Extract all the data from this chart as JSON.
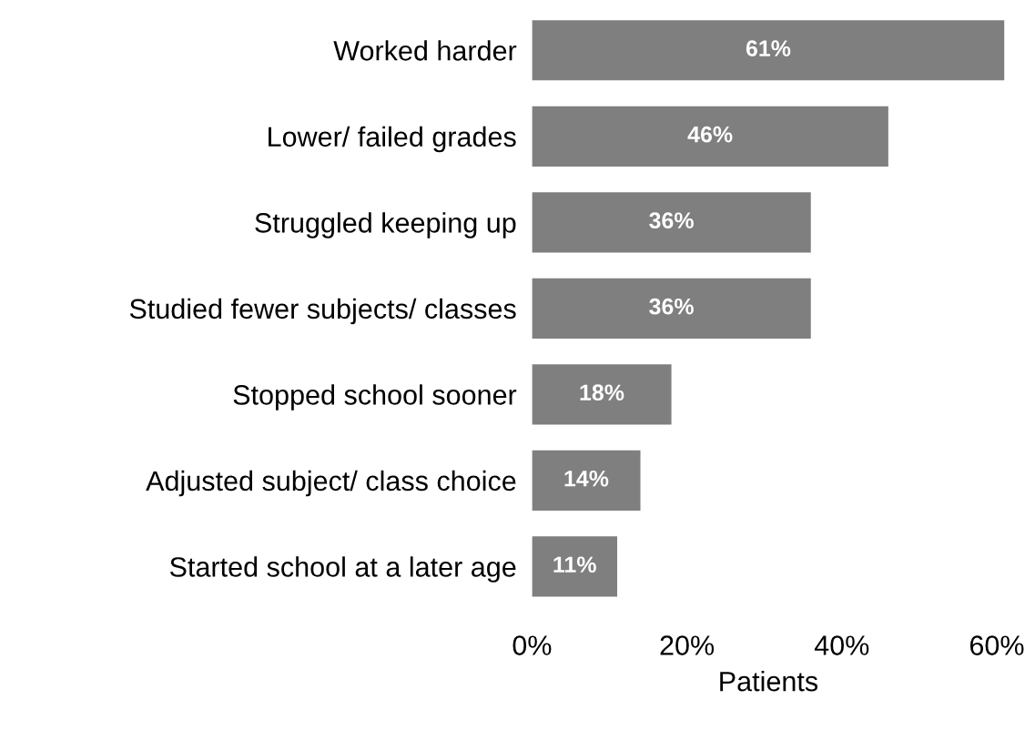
{
  "chart_data": {
    "type": "bar",
    "orientation": "horizontal",
    "xlabel": "Patients",
    "categories": [
      "Worked harder",
      "Lower/ failed grades",
      "Struggled keeping up",
      "Studied fewer subjects/ classes",
      "Stopped school sooner",
      "Adjusted subject/ class choice",
      "Started school at a later age"
    ],
    "values": [
      61,
      46,
      36,
      36,
      18,
      14,
      11
    ],
    "value_labels": [
      "61%",
      "46%",
      "36%",
      "36%",
      "18%",
      "14%",
      "11%"
    ],
    "color": "#7f7f7f",
    "xlim": [
      0,
      61
    ],
    "xticks": [
      {
        "value": 0,
        "label": "0%"
      },
      {
        "value": 20,
        "label": "20%"
      },
      {
        "value": 40,
        "label": "40%"
      },
      {
        "value": 60,
        "label": "60%"
      }
    ],
    "grid": false,
    "legend": false
  }
}
